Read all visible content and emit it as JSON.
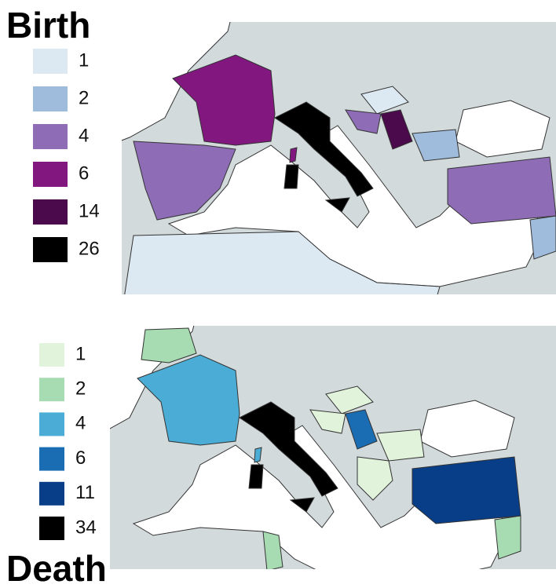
{
  "birth": {
    "title": "Birth",
    "legend": [
      {
        "label": 1,
        "color": "#dde9f2"
      },
      {
        "label": 2,
        "color": "#a0bcdc"
      },
      {
        "label": 4,
        "color": "#8e6db6"
      },
      {
        "label": 6,
        "color": "#82177f"
      },
      {
        "label": 14,
        "color": "#4a0a4c"
      },
      {
        "label": 26,
        "color": "#000000"
      }
    ]
  },
  "death": {
    "title": "Death",
    "legend": [
      {
        "label": 1,
        "color": "#e2f3dc"
      },
      {
        "label": 2,
        "color": "#a7dbb1"
      },
      {
        "label": 4,
        "color": "#4badd5"
      },
      {
        "label": 6,
        "color": "#1a6db3"
      },
      {
        "label": 11,
        "color": "#083e88"
      },
      {
        "label": 34,
        "color": "#000000"
      }
    ]
  }
}
